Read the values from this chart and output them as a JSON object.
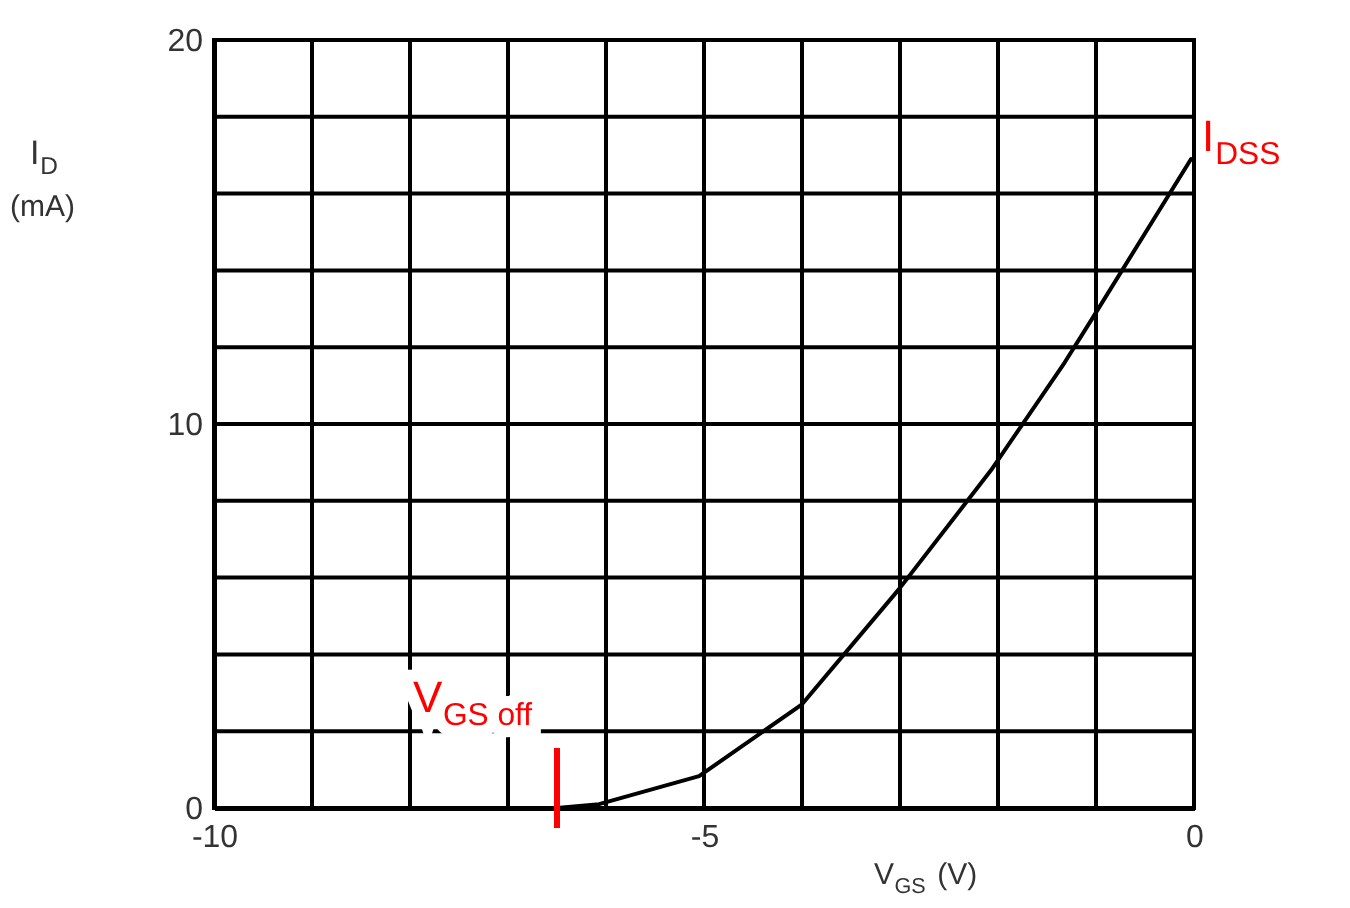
{
  "chart_data": {
    "type": "line",
    "xlabel": "V$_{GS}$ (V)",
    "ylabel": "I$_{D}$ (mA)",
    "series": [
      {
        "color": "#000000",
        "x": [
          -10,
          -8,
          -6.5,
          -6.07,
          -5.05,
          -4.0,
          -3.01,
          -2.07,
          -1.32,
          -1.05,
          -0.03
        ],
        "values": [
          0,
          0,
          0,
          0.1,
          0.83,
          2.7,
          5.7,
          8.8,
          11.6,
          12.7,
          16.9
        ]
      }
    ],
    "xlim": [
      -10,
      0
    ],
    "ylim": [
      0,
      20
    ],
    "xticks": [
      -10,
      {
        "value": -9,
        "label": null
      },
      {
        "value": -8,
        "label": null
      },
      {
        "value": -7,
        "label": null
      },
      {
        "value": -6,
        "label": null
      },
      -5,
      {
        "value": -4,
        "label": null
      },
      {
        "value": -3,
        "label": null
      },
      {
        "value": -2,
        "label": null
      },
      {
        "value": -1,
        "label": null
      },
      0
    ],
    "yticks": [
      0,
      {
        "value": 2,
        "label": null
      },
      {
        "value": 4,
        "label": null
      },
      {
        "value": 6,
        "label": null
      },
      {
        "value": 8,
        "label": null
      },
      10,
      {
        "value": 12,
        "label": null
      },
      {
        "value": 14,
        "label": null
      },
      {
        "value": 16,
        "label": null
      },
      {
        "value": 18,
        "label": null
      },
      20
    ],
    "grid": true,
    "legend": false,
    "marker": "none",
    "line_style": "solid",
    "annotations": [
      {
        "text": "I$_{DSS}$",
        "x": 0,
        "y": 17
      },
      {
        "text": "V$_{GS off}$",
        "x": -6.5,
        "y": 0
      }
    ]
  }
}
